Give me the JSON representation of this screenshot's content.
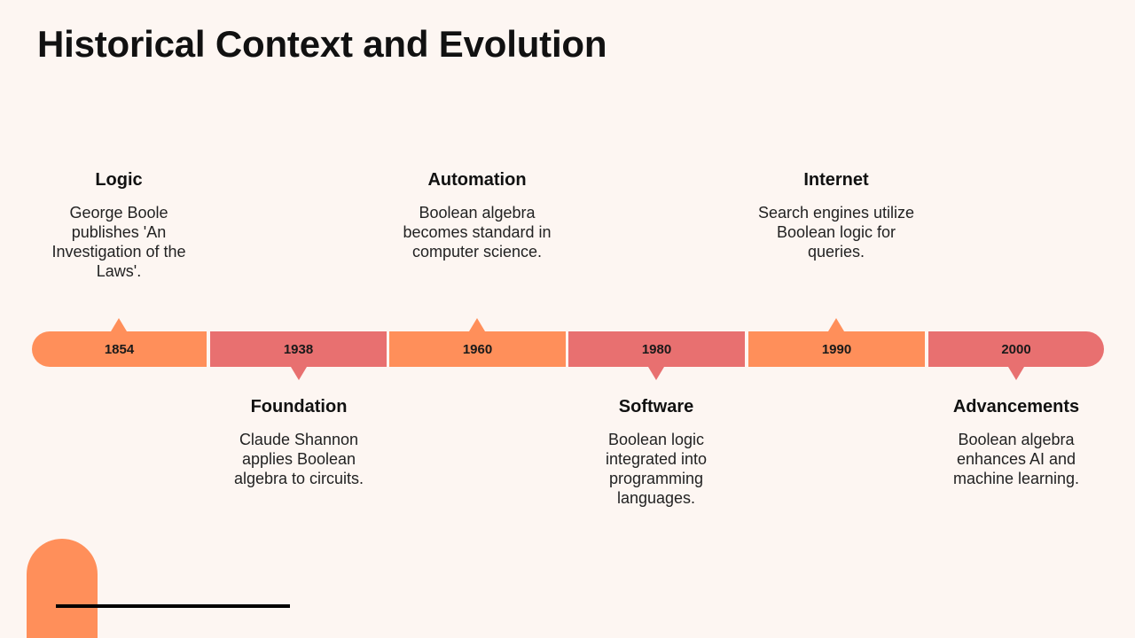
{
  "slide": {
    "title": "Historical Context and Evolution"
  },
  "colors": {
    "background": "#FDF6F2",
    "orange": "#FF8F5A",
    "red": "#E87070"
  },
  "timeline": {
    "segments": [
      {
        "year": "1854",
        "color": "orange",
        "pointer": "up"
      },
      {
        "year": "1938",
        "color": "red",
        "pointer": "down"
      },
      {
        "year": "1960",
        "color": "orange",
        "pointer": "up"
      },
      {
        "year": "1980",
        "color": "red",
        "pointer": "down"
      },
      {
        "year": "1990",
        "color": "orange",
        "pointer": "up"
      },
      {
        "year": "2000",
        "color": "red",
        "pointer": "down"
      }
    ]
  },
  "events": [
    {
      "title": "Logic",
      "description": "George Boole publishes 'An Investigation of the Laws'.",
      "position": "above"
    },
    {
      "title": "Foundation",
      "description": "Claude Shannon applies Boolean algebra to circuits.",
      "position": "below"
    },
    {
      "title": "Automation",
      "description": "Boolean algebra becomes standard in computer science.",
      "position": "above"
    },
    {
      "title": "Software",
      "description": "Boolean logic integrated into programming languages.",
      "position": "below"
    },
    {
      "title": "Internet",
      "description": "Search engines utilize Boolean logic for queries.",
      "position": "above"
    },
    {
      "title": "Advancements",
      "description": "Boolean algebra enhances AI and machine learning.",
      "position": "below"
    }
  ]
}
